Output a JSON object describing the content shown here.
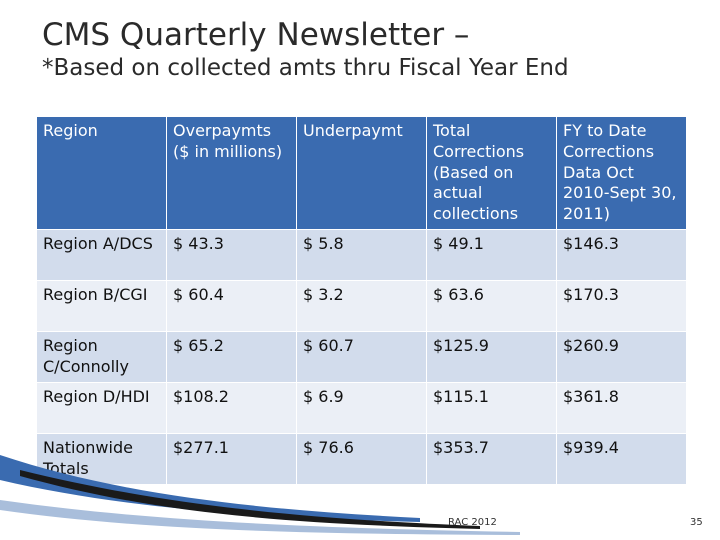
{
  "title": {
    "line1": "CMS Quarterly Newsletter –",
    "line2": "*Based on collected amts thru Fiscal Year End"
  },
  "table": {
    "headers": [
      "Region",
      "Overpaymts ($ in millions)",
      "Underpaymt",
      "Total Corrections (Based on actual collections",
      "FY to Date Corrections Data Oct 2010-Sept 30, 2011)"
    ],
    "rows": [
      [
        "Region A/DCS",
        "$ 43.3",
        "$  5.8",
        "$ 49.1",
        "$146.3"
      ],
      [
        "Region B/CGI",
        "$ 60.4",
        "$  3.2",
        "$ 63.6",
        "$170.3"
      ],
      [
        "Region C/Connolly",
        "$ 65.2",
        "$ 60.7",
        "$125.9",
        "$260.9"
      ],
      [
        "Region D/HDI",
        "$108.2",
        "$  6.9",
        "$115.1",
        "$361.8"
      ],
      [
        "Nationwide Totals",
        "$277.1",
        "$ 76.6",
        "$353.7",
        "$939.4"
      ]
    ]
  },
  "footer": {
    "center": "RAC 2012",
    "page_number": "35"
  },
  "colors": {
    "header_bg": "#3a6bb0",
    "row_dark": "#d2dcec",
    "row_light": "#ebeff6",
    "title_text": "#2a2a2a"
  }
}
